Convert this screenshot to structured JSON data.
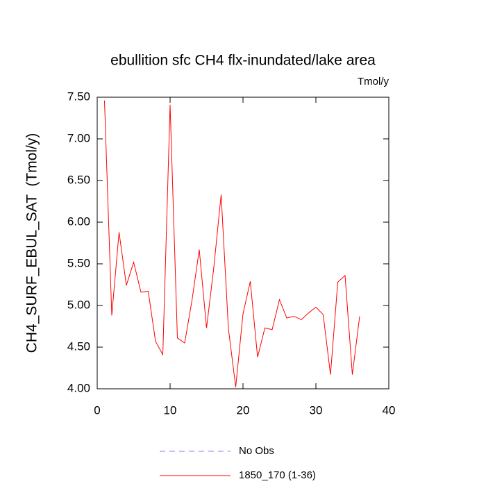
{
  "chart_data": {
    "type": "line",
    "title": "ebullition sfc CH4 flx-inundated/lake area",
    "units_label": "Tmol/y",
    "y_label": "CH4_SURF_EBUL_SAT  (Tmol/y)",
    "x": [
      1,
      2,
      3,
      4,
      5,
      6,
      7,
      8,
      9,
      10,
      11,
      12,
      13,
      14,
      15,
      16,
      17,
      18,
      19,
      20,
      21,
      22,
      23,
      24,
      25,
      26,
      27,
      28,
      29,
      30,
      31,
      32,
      33,
      34,
      35,
      36
    ],
    "series": [
      {
        "name": "No Obs",
        "color": "#8080ff",
        "dashed": true,
        "values": [
          null,
          null,
          null,
          null,
          null,
          null,
          null,
          null,
          null,
          null,
          null,
          null,
          null,
          null,
          null,
          null,
          null,
          null,
          null,
          null,
          null,
          null,
          null,
          null,
          null,
          null,
          null,
          null,
          null,
          null,
          null,
          null,
          null,
          null,
          null,
          null
        ]
      },
      {
        "name": "1850_170 (1-36)",
        "color": "#ff0000",
        "dashed": false,
        "values": [
          7.46,
          4.88,
          5.88,
          5.24,
          5.52,
          5.16,
          5.17,
          4.57,
          4.41,
          7.41,
          4.61,
          4.55,
          5.06,
          5.67,
          4.73,
          5.46,
          6.33,
          4.72,
          4.02,
          4.9,
          5.29,
          4.38,
          4.73,
          4.71,
          5.07,
          4.85,
          4.87,
          4.83,
          4.91,
          4.98,
          4.89,
          4.17,
          5.28,
          5.36,
          4.17,
          4.87
        ]
      }
    ],
    "xlim": [
      0,
      40
    ],
    "xticks": [
      0,
      10,
      20,
      30,
      40
    ],
    "ylim": [
      4,
      7.5
    ],
    "yticks": [
      {
        "value": 4,
        "label": "4.00"
      },
      {
        "value": 4.5,
        "label": "4.50"
      },
      {
        "value": 5,
        "label": "5.00"
      },
      {
        "value": 5.5,
        "label": "5.50"
      },
      {
        "value": 6,
        "label": "6.00"
      },
      {
        "value": 6.5,
        "label": "6.50"
      },
      {
        "value": 7,
        "label": "7.00"
      },
      {
        "value": 7.5,
        "label": "7.50"
      }
    ]
  }
}
